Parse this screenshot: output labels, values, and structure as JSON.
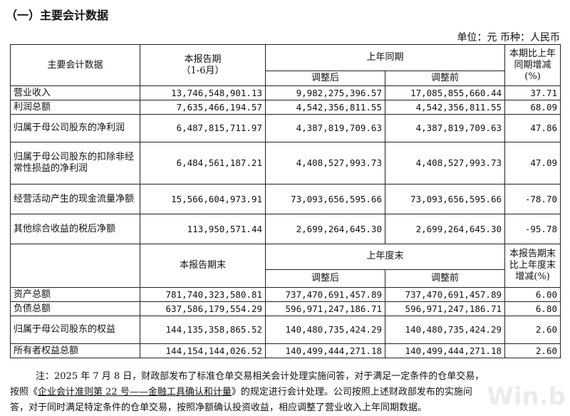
{
  "section_title": "（一）主要会计数据",
  "unit_line": "单位：元  币种：人民币",
  "header1": {
    "col1": "主要会计数据",
    "col2_line1": "本报告期",
    "col2_line2": "（1-6月）",
    "col34": "上年同期",
    "col3": "调整后",
    "col4": "调整前",
    "col5": "本期比上年同期增减(%)"
  },
  "rows1": [
    {
      "label": "营业收入",
      "current": "13,746,548,901.13",
      "adj_after": "9,982,275,396.57",
      "adj_before": "17,085,855,660.44",
      "change": "37.71"
    },
    {
      "label": "利润总额",
      "current": "7,635,466,194.57",
      "adj_after": "4,542,356,811.55",
      "adj_before": "4,542,356,811.55",
      "change": "68.09"
    },
    {
      "label": "归属于母公司股东的净利润",
      "current": "6,487,815,711.97",
      "adj_after": "4,387,819,709.63",
      "adj_before": "4,387,819,709.63",
      "change": "47.86"
    },
    {
      "label": "归属于母公司股东的扣除非经常性损益的净利润",
      "current": "6,484,561,187.21",
      "adj_after": "4,408,527,993.73",
      "adj_before": "4,408,527,993.73",
      "change": "47.09"
    },
    {
      "label": "经营活动产生的现金流量净额",
      "current": "15,566,604,973.91",
      "adj_after": "73,093,656,595.66",
      "adj_before": "73,093,656,595.66",
      "change": "-78.70"
    },
    {
      "label": "其他综合收益的税后净额",
      "current": "113,950,571.44",
      "adj_after": "2,699,264,645.30",
      "adj_before": "2,699,264,645.30",
      "change": "-95.78"
    }
  ],
  "header2": {
    "col2": "本报告期末",
    "col34": "上年度末",
    "col3": "调整后",
    "col4": "调整前",
    "col5": "本报告期末比上年度末增减(%)"
  },
  "rows2": [
    {
      "label": "资产总额",
      "current": "781,740,323,580.81",
      "adj_after": "737,470,691,457.89",
      "adj_before": "737,470,691,457.89",
      "change": "6.00"
    },
    {
      "label": "负债总额",
      "current": "637,586,179,554.29",
      "adj_after": "596,971,247,186.71",
      "adj_before": "596,971,247,186.71",
      "change": "6.80"
    },
    {
      "label": "归属于母公司股东的权益",
      "current": "144,135,358,865.52",
      "adj_after": "140,480,735,424.29",
      "adj_before": "140,480,735,424.29",
      "change": "2.60"
    },
    {
      "label": "所有者权益总额",
      "current": "144,154,144,026.52",
      "adj_after": "140,499,444,271.18",
      "adj_before": "140,499,444,271.18",
      "change": "2.60"
    }
  ],
  "note": {
    "line1": "注：2025 年 7 月 8 日，财政部发布了标准仓单交易相关会计处理实施问答，对于满足一定条件的仓单交易，",
    "line2_pre": "按照《",
    "line2_link": "企业会计准则第 22 号——金融工具确认和计量",
    "line2_post": "》的规定进行会计处理。公司按照上述财政部发布的实施问",
    "line3": "答，对于同时满足特定条件的仓单交易，按照净额确认投资收益，相应调整了营业收入上年同期数据。"
  },
  "watermark": "Win.b"
}
